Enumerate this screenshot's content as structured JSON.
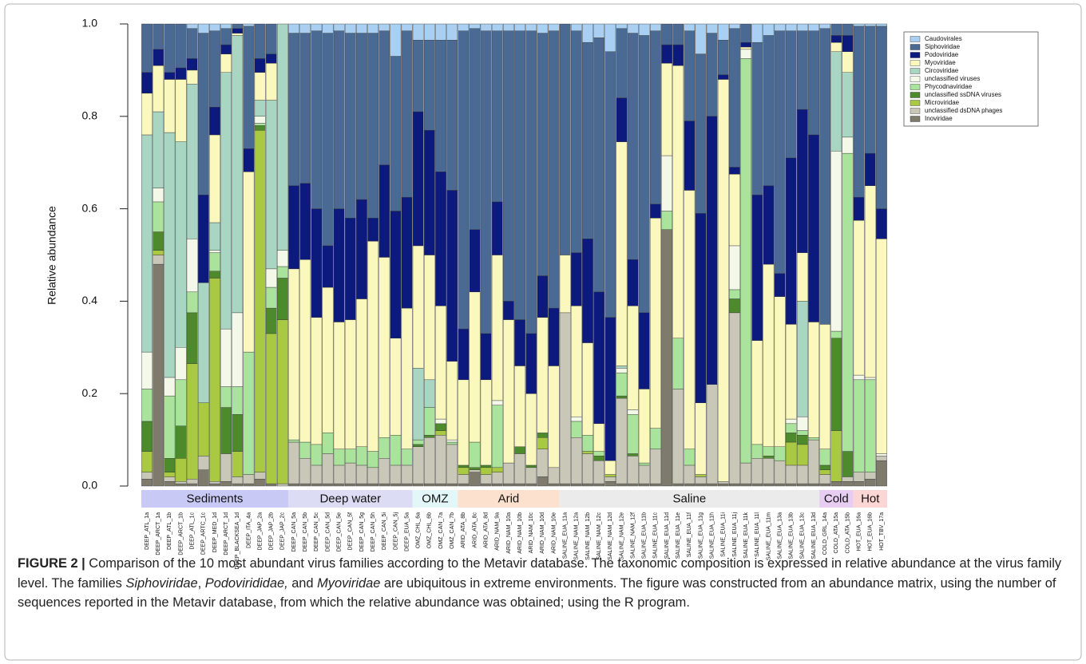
{
  "chart_data": {
    "type": "stacked_bar",
    "ylabel": "Relative abundance",
    "ylim": [
      0,
      1
    ],
    "yticks": [
      {
        "value": 0,
        "label": "0.0"
      },
      0.2,
      0.4,
      0.6,
      0.8,
      {
        "value": 1,
        "label": "1.0"
      }
    ],
    "legend": "top-right",
    "groups": [
      {
        "label": "Sediments",
        "color": "#c9c9f5",
        "categories": [
          "DEEP_ATL_1a",
          "DEEP_ARCT_1a",
          "DEEP_ATL_1b",
          "DEEP_ARCT_1b",
          "DEEP_ATL_1c",
          "DEEP_ARTC_1c",
          "DEEP_MED_1d",
          "DEEP_ARCT_1d",
          "DEEP_BLACKSEA_1d",
          "DEEP_ITA_4a",
          "DEEP_JAP_2a",
          "DEEP_JAP_2b",
          "DEEP_JAP_2c"
        ]
      },
      {
        "label": "Deep water",
        "color": "#dcdcf4",
        "categories": [
          "DEEP_CAN_5a",
          "DEEP_CAN_5b",
          "DEEP_CAN_5c",
          "DEEP_CAN_5d",
          "DEEP_CAN_5e",
          "DEEP_CAN_5f",
          "DEEP_CAN_5g",
          "DEEP_CAN_5h",
          "DEEP_CAN_5i",
          "DEEP_CAN_5j",
          "DEEP_EUA_5a"
        ]
      },
      {
        "label": "OMZ",
        "color": "#e3f6f8",
        "categories": [
          "OMZ_CHL_6a",
          "OMZ_CHL_6b",
          "OMZ_CAN_7a",
          "OMZ_CAN_7b"
        ]
      },
      {
        "label": "Arid",
        "color": "#fde1cf",
        "categories": [
          "ARID_ATA_8b",
          "ARID_ATA_8c",
          "ARID_ATA_8d",
          "ARID_NAM_9a",
          "ARID_NAM_10a",
          "ARID_NAM_10b",
          "ARID_NAM_10c",
          "ARID_NAM_10d",
          "ARID_NAM_10e"
        ]
      },
      {
        "label": "Saline",
        "color": "#ebebeb",
        "categories": [
          "SALINE_EUA_11a",
          "SALINE_NAM_12a",
          "SALINE_NAM_12b",
          "SALINE_NAM_12c",
          "SALINE_NAM_12d",
          "SALINE_NAM_12e",
          "SALINE_NAM_12f",
          "SALINE_EUA_11b",
          "SALINE_EUA_11c",
          "SALINE_EUA_11d",
          "SALINE_EUA_11e",
          "SALINE_EUA_11f",
          "SALINE_EUA_11g",
          "SALINE_EUA_11h",
          "SALINE_EUA_11i",
          "SALINE_EUA_11j",
          "SALINE_EUA_11k",
          "SALINE_EUA_11l",
          "SALINE_EUA_11m",
          "SALINE_EUA_13a",
          "SALINE_EUA_13b",
          "SALINE_EUA_13c",
          "SALINE_EUA_13d"
        ]
      },
      {
        "label": "Cold",
        "color": "#e8cdf3",
        "categories": [
          "COLD_GRL_14a",
          "COLD_ATA_15a",
          "COLD_ATA_15b"
        ]
      },
      {
        "label": "Hot",
        "color": "#fcd5d5",
        "categories": [
          "HOT_EUA_16a",
          "HOT_EUA_16b",
          "HOT_TBV_17a"
        ]
      }
    ],
    "series": [
      {
        "name": "Caudovirales",
        "color": "#a9d0f2",
        "values": [
          0,
          0,
          0,
          0,
          0.01,
          0.02,
          0.015,
          0.01,
          0,
          0.005,
          0,
          0,
          0,
          0.02,
          0.02,
          0.015,
          0.02,
          0.015,
          0.02,
          0.02,
          0.02,
          0.015,
          0.07,
          0.015,
          0.035,
          0.035,
          0.035,
          0.035,
          0.015,
          0.01,
          0.015,
          0.015,
          0.015,
          0.015,
          0.015,
          0.02,
          0.015,
          0,
          0.015,
          0.04,
          0.03,
          0.06,
          0.01,
          0.02,
          0.025,
          0.015,
          0,
          0,
          0.015,
          0.065,
          0.02,
          0.035,
          0.01,
          0,
          0.04,
          0.025,
          0.015,
          0.015,
          0.015,
          0.015,
          0.01,
          0,
          0,
          0.005,
          0.005,
          0.005
        ]
      },
      {
        "name": "Siphoviridae",
        "color": "#4b6a93",
        "values": [
          0.105,
          0.055,
          0.105,
          0.095,
          0.065,
          0.35,
          0.165,
          0.035,
          0.01,
          0.265,
          0.075,
          0.065,
          0,
          0.33,
          0.325,
          0.385,
          0.46,
          0.385,
          0.4,
          0.36,
          0.4,
          0.29,
          0.335,
          0.36,
          0.155,
          0.195,
          0.285,
          0.325,
          0.645,
          0.435,
          0.655,
          0.37,
          0.585,
          0.625,
          0.655,
          0.525,
          0.6,
          0.5,
          0.48,
          0.425,
          0.55,
          0.575,
          0.15,
          0.49,
          0.6,
          0.375,
          0.045,
          0.045,
          0.195,
          0.345,
          0.18,
          0.075,
          0.3,
          0.04,
          0.33,
          0.325,
          0.525,
          0.275,
          0.17,
          0.225,
          0.64,
          0.025,
          0.025,
          0.37,
          0.275,
          0.395
        ]
      },
      {
        "name": "Podoviridae",
        "color": "#0c1a7e",
        "values": [
          0.045,
          0.035,
          0.015,
          0.025,
          0.025,
          0.19,
          0.06,
          0.02,
          0.01,
          0.05,
          0.03,
          0.02,
          0,
          0.18,
          0.165,
          0.235,
          0.09,
          0.245,
          0.22,
          0.215,
          0.05,
          0.2,
          0.275,
          0.24,
          0.29,
          0.27,
          0.29,
          0.37,
          0.11,
          0.135,
          0.1,
          0.115,
          0.04,
          0.1,
          0.13,
          0.09,
          0.125,
          0,
          0.115,
          0.225,
          0.285,
          0.31,
          0.095,
          0.1,
          0.165,
          0.03,
          0.04,
          0.045,
          0.15,
          0.41,
          0.58,
          0.01,
          0.015,
          0.01,
          0.315,
          0.17,
          0.05,
          0.36,
          0.31,
          0.405,
          0,
          0.015,
          0.035,
          0.05,
          0.07,
          0.065
        ]
      },
      {
        "name": "Myoviridae",
        "color": "#fbf8bd",
        "values": [
          0.09,
          0.1,
          0.115,
          0.135,
          0.03,
          0,
          0.19,
          0.04,
          0.005,
          0.39,
          0.06,
          0.08,
          0,
          0.37,
          0.395,
          0.275,
          0.315,
          0.275,
          0.28,
          0.32,
          0.455,
          0.39,
          0.21,
          0.305,
          0.265,
          0.27,
          0.245,
          0.17,
          0.185,
          0.325,
          0.185,
          0.315,
          0.31,
          0.175,
          0.155,
          0.25,
          0.22,
          0.125,
          0.24,
          0.2,
          0.06,
          0.03,
          0.485,
          0.225,
          0.16,
          0.455,
          0.2,
          0.59,
          0.56,
          0.155,
          0,
          0.87,
          0.155,
          0.005,
          0.225,
          0.395,
          0.325,
          0.205,
          0.105,
          0.25,
          0.27,
          0.02,
          0.045,
          0.335,
          0.415,
          0.465
        ]
      },
      {
        "name": "Circoviridae",
        "color": "#a9d6c3",
        "values": [
          0.47,
          0.165,
          0.53,
          0.445,
          0.335,
          0.26,
          0.06,
          0.555,
          0.6,
          0,
          0.035,
          0.365,
          0.49,
          0,
          0,
          0,
          0,
          0,
          0,
          0,
          0,
          0,
          0,
          0,
          0.155,
          0.06,
          0,
          0,
          0,
          0,
          0,
          0,
          0,
          0,
          0,
          0,
          0,
          0,
          0,
          0,
          0,
          0,
          0.005,
          0,
          0,
          0,
          0,
          0,
          0,
          0,
          0,
          0,
          0,
          0,
          0,
          0,
          0,
          0,
          0.25,
          0,
          0,
          0.215,
          0.14,
          0,
          0,
          0
        ]
      },
      {
        "name": "unclassified viruses",
        "color": "#f3f8e8",
        "values": [
          0.08,
          0.03,
          0.04,
          0.07,
          0.115,
          0,
          0.005,
          0.125,
          0.16,
          0,
          0.015,
          0.04,
          0.035,
          0,
          0,
          0,
          0,
          0,
          0,
          0,
          0,
          0,
          0,
          0,
          0,
          0,
          0.01,
          0.005,
          0,
          0,
          0,
          0.01,
          0,
          0,
          0,
          0,
          0,
          0,
          0.01,
          0,
          0,
          0,
          0.01,
          0.01,
          0,
          0,
          0.12,
          0,
          0,
          0,
          0,
          0,
          0.095,
          0.02,
          0,
          0,
          0,
          0.01,
          0.03,
          0,
          0,
          0.39,
          0.035,
          0.01,
          0.005,
          0.005
        ]
      },
      {
        "name": "Phycodnaviridae",
        "color": "#a9e39c",
        "values": [
          0.07,
          0.065,
          0.135,
          0.1,
          0.045,
          0,
          0.04,
          0.045,
          0.06,
          0.265,
          0.005,
          0.045,
          0.025,
          0.005,
          0.035,
          0.045,
          0.045,
          0.035,
          0.03,
          0.04,
          0.035,
          0.045,
          0.065,
          0.035,
          0.01,
          0.06,
          0,
          0.005,
          0,
          0.055,
          0,
          0.135,
          0,
          0,
          0,
          0,
          0,
          0,
          0.035,
          0.035,
          0.01,
          0,
          0.05,
          0.085,
          0.005,
          0.045,
          0.04,
          0.11,
          0.035,
          0,
          0,
          0,
          0.02,
          0.875,
          0.03,
          0.02,
          0.03,
          0.02,
          0.01,
          0.005,
          0.035,
          0.015,
          0.645,
          0.2,
          0.2,
          0
        ]
      },
      {
        "name": "unclassified ssDNA viruses",
        "color": "#4c8a2c",
        "values": [
          0.065,
          0.04,
          0.03,
          0.07,
          0.11,
          0,
          0.015,
          0.1,
          0.08,
          0,
          0.01,
          0.055,
          0.09,
          0,
          0,
          0,
          0,
          0,
          0,
          0,
          0,
          0,
          0,
          0,
          0.005,
          0.005,
          0.015,
          0,
          0.005,
          0.005,
          0.005,
          0,
          0,
          0.015,
          0.005,
          0.01,
          0,
          0,
          0,
          0,
          0.01,
          0,
          0.005,
          0.005,
          0,
          0,
          0,
          0,
          0,
          0,
          0,
          0,
          0.03,
          0,
          0,
          0.005,
          0,
          0.02,
          0.02,
          0,
          0.01,
          0.2,
          0.055,
          0,
          0,
          0
        ]
      },
      {
        "name": "Microviridae",
        "color": "#a9c942",
        "values": [
          0.045,
          0.01,
          0.01,
          0.05,
          0.25,
          0.115,
          0.44,
          0,
          0.055,
          0,
          0.74,
          0.325,
          0.355,
          0,
          0,
          0,
          0,
          0,
          0,
          0,
          0,
          0,
          0,
          0,
          0,
          0,
          0.01,
          0,
          0.015,
          0,
          0.015,
          0.01,
          0,
          0,
          0,
          0.025,
          0,
          0,
          0,
          0.005,
          0,
          0.005,
          0,
          0,
          0,
          0,
          0,
          0,
          0,
          0.005,
          0,
          0,
          0,
          0,
          0,
          0,
          0,
          0.05,
          0.045,
          0,
          0.01,
          0.11,
          0,
          0,
          0,
          0
        ]
      },
      {
        "name": "unclassified dsDNA phages",
        "color": "#c9c7b8",
        "values": [
          0.015,
          0.02,
          0.01,
          0.005,
          0.01,
          0.03,
          0.005,
          0.06,
          0.015,
          0.02,
          0.015,
          0,
          0.005,
          0.09,
          0.055,
          0.04,
          0.065,
          0.04,
          0.045,
          0.04,
          0.035,
          0.055,
          0.04,
          0.04,
          0.08,
          0.1,
          0.105,
          0.085,
          0.02,
          0.005,
          0.02,
          0.025,
          0.045,
          0.065,
          0.035,
          0.06,
          0.035,
          0.37,
          0.1,
          0.065,
          0.05,
          0.01,
          0.185,
          0.06,
          0.04,
          0.075,
          0,
          0.205,
          0.04,
          0.015,
          0.215,
          0.005,
          0.37,
          0.045,
          0.055,
          0.055,
          0.05,
          0.04,
          0.04,
          0.095,
          0.02,
          0,
          0.01,
          0.02,
          0.015,
          0.01
        ]
      },
      {
        "name": "Inoviridae",
        "color": "#7e7b6d",
        "values": [
          0.015,
          0.48,
          0.01,
          0.005,
          0.005,
          0.035,
          0.005,
          0.01,
          0.005,
          0.005,
          0.015,
          0.005,
          0,
          0.005,
          0.005,
          0.005,
          0.005,
          0.005,
          0.005,
          0.005,
          0.005,
          0.005,
          0.005,
          0.005,
          0.005,
          0.005,
          0.005,
          0.005,
          0.005,
          0.03,
          0.005,
          0.005,
          0.005,
          0.005,
          0.005,
          0.02,
          0.005,
          0.005,
          0.005,
          0.005,
          0.005,
          0.01,
          0.005,
          0.005,
          0.005,
          0.005,
          0.555,
          0.005,
          0.005,
          0.005,
          0.005,
          0.005,
          0.005,
          0.005,
          0.005,
          0.005,
          0.005,
          0.005,
          0.005,
          0.005,
          0.005,
          0.01,
          0.01,
          0.01,
          0.015,
          0.055
        ]
      }
    ]
  },
  "caption": {
    "label": "FIGURE 2 |",
    "runs": [
      {
        "text": " Comparison of the 10 most abundant virus families according to the Metavir database. The taxonomic composition is expressed in relative abundance at the virus family level. The families "
      },
      {
        "text": "Siphoviridae",
        "italic": true
      },
      {
        "text": ", "
      },
      {
        "text": "Podovirididae,",
        "italic": true
      },
      {
        "text": " and "
      },
      {
        "text": "Myoviridae",
        "italic": true
      },
      {
        "text": " are ubiquitous in extreme environments. The figure was constructed from an abundance matrix, using the number of sequences reported in the Metavir database, from which the relative abundance was obtained; using the R program."
      }
    ]
  }
}
